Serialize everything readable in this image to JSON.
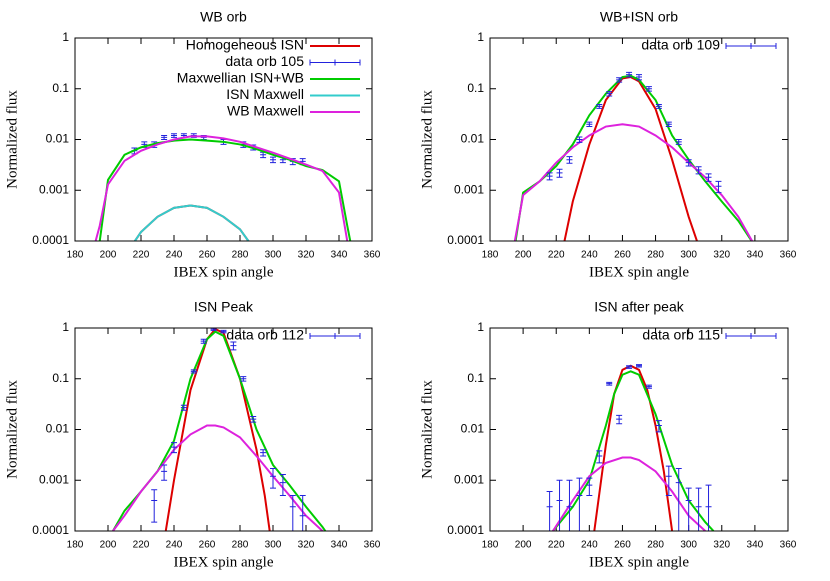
{
  "chart_data": [
    {
      "type": "line",
      "title": "WB orb",
      "x_label": "IBEX spin angle",
      "y_label": "Normalized flux",
      "xlim": [
        180,
        360
      ],
      "xticks": [
        180,
        200,
        220,
        240,
        260,
        280,
        300,
        320,
        340,
        360
      ],
      "ylim": [
        0.0001,
        1
      ],
      "yticks": [
        0.0001,
        0.001,
        0.01,
        0.1,
        1
      ],
      "yscale": "log",
      "legend": "top right",
      "series": [
        {
          "name": "Homogeneous ISN",
          "color": "#dd0000",
          "x": [
            210,
            220,
            230,
            240,
            250,
            260,
            270,
            280,
            290
          ],
          "values": [
            5e-05,
            0.00015,
            0.0003,
            0.00045,
            0.0005,
            0.00045,
            0.0003,
            0.00017,
            6e-05
          ]
        },
        {
          "name": "data orb 105",
          "color": "#2222dd",
          "x": [
            216,
            222,
            228,
            234,
            240,
            246,
            252,
            258,
            270,
            282,
            288,
            294,
            300,
            306,
            312,
            318
          ],
          "values": [
            0.006,
            0.008,
            0.008,
            0.011,
            0.012,
            0.012,
            0.012,
            0.011,
            0.009,
            0.008,
            0.007,
            0.005,
            0.004,
            0.004,
            0.0037,
            0.0037
          ],
          "errors": [
            0.0008,
            0.001,
            0.001,
            0.001,
            0.001,
            0.001,
            0.001,
            0.001,
            0.001,
            0.001,
            0.0008,
            0.0006,
            0.0005,
            0.0005,
            0.0005,
            0.0005
          ]
        },
        {
          "name": "Maxwellian ISN+WB",
          "color": "#00cc00",
          "x": [
            190,
            195,
            200,
            210,
            220,
            230,
            240,
            250,
            260,
            270,
            280,
            290,
            300,
            310,
            320,
            330,
            340,
            345,
            350
          ],
          "values": [
            5e-05,
            0.0001,
            0.0016,
            0.005,
            0.007,
            0.0085,
            0.0095,
            0.01,
            0.0095,
            0.009,
            0.008,
            0.0065,
            0.005,
            0.004,
            0.003,
            0.0025,
            0.0015,
            0.0002,
            3e-05
          ]
        },
        {
          "name": "ISN Maxwell",
          "color": "#33cccc",
          "x": [
            210,
            220,
            230,
            240,
            250,
            260,
            270,
            280,
            290
          ],
          "values": [
            5e-05,
            0.00015,
            0.0003,
            0.00045,
            0.0005,
            0.00045,
            0.0003,
            0.00017,
            6e-05
          ]
        },
        {
          "name": "WB Maxwell",
          "color": "#dd22dd",
          "x": [
            190,
            195,
            200,
            210,
            220,
            230,
            240,
            250,
            260,
            270,
            280,
            290,
            300,
            310,
            320,
            330,
            340,
            345,
            350
          ],
          "values": [
            5e-05,
            0.0002,
            0.0013,
            0.0038,
            0.006,
            0.008,
            0.01,
            0.0115,
            0.0115,
            0.0105,
            0.009,
            0.007,
            0.0055,
            0.0042,
            0.0032,
            0.0024,
            0.0009,
            0.0001,
            2e-05
          ]
        }
      ]
    },
    {
      "type": "line",
      "title": "WB+ISN orb",
      "x_label": "IBEX spin angle",
      "y_label": "Normalized flux",
      "xlim": [
        180,
        360
      ],
      "xticks": [
        180,
        200,
        220,
        240,
        260,
        280,
        300,
        320,
        340,
        360
      ],
      "ylim": [
        0.0001,
        1
      ],
      "yticks": [
        0.0001,
        0.001,
        0.01,
        0.1,
        1
      ],
      "yscale": "log",
      "legend": "top right",
      "series": [
        {
          "color": "#dd0000",
          "x": [
            225,
            230,
            240,
            250,
            260,
            265,
            270,
            280,
            290,
            300,
            305
          ],
          "values": [
            0.0001,
            0.0006,
            0.008,
            0.06,
            0.16,
            0.17,
            0.14,
            0.04,
            0.004,
            0.0003,
            0.0001
          ]
        },
        {
          "color": "#00cc00",
          "x": [
            195,
            200,
            210,
            220,
            230,
            240,
            250,
            260,
            265,
            270,
            280,
            290,
            300,
            310,
            320,
            330,
            340
          ],
          "values": [
            8e-05,
            0.0009,
            0.0015,
            0.003,
            0.008,
            0.03,
            0.08,
            0.17,
            0.18,
            0.15,
            0.06,
            0.012,
            0.004,
            0.0015,
            0.0006,
            0.00025,
            8e-05
          ]
        },
        {
          "color": "#dd22dd",
          "x": [
            195,
            200,
            210,
            220,
            230,
            240,
            250,
            260,
            270,
            280,
            290,
            300,
            310,
            320,
            330,
            340
          ],
          "values": [
            0.0001,
            0.0008,
            0.0015,
            0.0035,
            0.007,
            0.012,
            0.018,
            0.02,
            0.018,
            0.012,
            0.007,
            0.0035,
            0.0018,
            0.0008,
            0.0003,
            8e-05
          ]
        },
        {
          "name": "data orb 109",
          "color": "#2222dd",
          "x": [
            216,
            222,
            228,
            234,
            240,
            246,
            252,
            258,
            264,
            270,
            276,
            282,
            288,
            294,
            300,
            306,
            312,
            318
          ],
          "values": [
            0.0019,
            0.0022,
            0.004,
            0.01,
            0.02,
            0.045,
            0.08,
            0.15,
            0.19,
            0.17,
            0.1,
            0.045,
            0.02,
            0.009,
            0.0035,
            0.0025,
            0.0018,
            0.0012
          ],
          "errors": [
            0.0003,
            0.0004,
            0.0006,
            0.0012,
            0.002,
            0.004,
            0.008,
            0.015,
            0.02,
            0.02,
            0.01,
            0.004,
            0.002,
            0.001,
            0.0005,
            0.0004,
            0.0003,
            0.0003
          ]
        }
      ]
    },
    {
      "type": "line",
      "title": "ISN Peak",
      "x_label": "IBEX spin angle",
      "y_label": "Normalized flux",
      "xlim": [
        180,
        360
      ],
      "xticks": [
        180,
        200,
        220,
        240,
        260,
        280,
        300,
        320,
        340,
        360
      ],
      "ylim": [
        0.0001,
        1
      ],
      "yticks": [
        0.0001,
        0.001,
        0.01,
        0.1,
        1
      ],
      "yscale": "log",
      "legend": "top right",
      "series": [
        {
          "color": "#dd0000",
          "x": [
            235,
            240,
            250,
            260,
            265,
            270,
            280,
            290,
            295,
            298
          ],
          "values": [
            0.0001,
            0.001,
            0.06,
            0.6,
            0.95,
            0.8,
            0.1,
            0.004,
            0.0005,
            0.0001
          ]
        },
        {
          "color": "#00cc00",
          "x": [
            203,
            210,
            220,
            230,
            240,
            250,
            260,
            265,
            270,
            280,
            290,
            300,
            310,
            320,
            330,
            335
          ],
          "values": [
            0.0001,
            0.00025,
            0.0006,
            0.0015,
            0.006,
            0.1,
            0.6,
            0.85,
            0.7,
            0.1,
            0.01,
            0.002,
            0.0008,
            0.0003,
            0.00012,
            7e-05
          ]
        },
        {
          "color": "#dd22dd",
          "x": [
            203,
            210,
            220,
            230,
            240,
            250,
            260,
            265,
            270,
            280,
            290,
            300,
            310,
            320,
            330
          ],
          "values": [
            0.0001,
            0.0002,
            0.0006,
            0.0015,
            0.004,
            0.008,
            0.012,
            0.012,
            0.011,
            0.007,
            0.003,
            0.0012,
            0.0005,
            0.0002,
            0.0001
          ]
        },
        {
          "name": "data orb 112",
          "color": "#2222dd",
          "x": [
            228,
            234,
            240,
            246,
            252,
            258,
            264,
            270,
            276,
            282,
            288,
            294,
            300,
            306,
            312,
            318
          ],
          "values": [
            0.0004,
            0.0015,
            0.0045,
            0.027,
            0.14,
            0.55,
            0.95,
            0.85,
            0.45,
            0.1,
            0.016,
            0.0035,
            0.0012,
            0.0009,
            0.0003,
            0.0002
          ],
          "errors": [
            0.00025,
            0.0005,
            0.001,
            0.003,
            0.01,
            0.05,
            0.05,
            0.05,
            0.08,
            0.01,
            0.002,
            0.0005,
            0.0005,
            0.0004,
            0.0002,
            0.0003
          ]
        }
      ]
    },
    {
      "type": "line",
      "title": "ISN after peak",
      "x_label": "IBEX spin angle",
      "y_label": "Normalized flux",
      "xlim": [
        180,
        360
      ],
      "xticks": [
        180,
        200,
        220,
        240,
        260,
        280,
        300,
        320,
        340,
        360
      ],
      "ylim": [
        0.0001,
        1
      ],
      "yticks": [
        0.0001,
        0.001,
        0.01,
        0.1,
        1
      ],
      "yscale": "log",
      "legend": "top right",
      "series": [
        {
          "color": "#dd0000",
          "x": [
            243,
            250,
            255,
            260,
            265,
            270,
            275,
            280,
            285,
            290
          ],
          "values": [
            0.0001,
            0.005,
            0.05,
            0.15,
            0.18,
            0.15,
            0.06,
            0.012,
            0.0015,
            0.0001
          ]
        },
        {
          "color": "#00cc00",
          "x": [
            218,
            230,
            240,
            250,
            255,
            260,
            265,
            270,
            280,
            290,
            300,
            310,
            315
          ],
          "values": [
            0.0001,
            0.0003,
            0.001,
            0.012,
            0.05,
            0.12,
            0.14,
            0.12,
            0.02,
            0.002,
            0.0004,
            0.00015,
            0.0001
          ]
        },
        {
          "color": "#dd22dd",
          "x": [
            218,
            230,
            240,
            250,
            260,
            265,
            270,
            280,
            290,
            300,
            310
          ],
          "values": [
            0.0001,
            0.0004,
            0.0012,
            0.0022,
            0.0028,
            0.0028,
            0.0025,
            0.0015,
            0.0006,
            0.0002,
            0.0001
          ]
        },
        {
          "name": "data orb 115",
          "color": "#2222dd",
          "x": [
            216,
            222,
            228,
            234,
            240,
            246,
            252,
            258,
            264,
            270,
            276,
            282,
            288,
            294,
            300,
            306,
            312
          ],
          "values": [
            0.0003,
            0.0004,
            0.0003,
            0.0005,
            0.0008,
            0.003,
            0.08,
            0.016,
            0.17,
            0.18,
            0.07,
            0.012,
            0.0012,
            0.0009,
            0.0004,
            0.0003,
            0.0003
          ],
          "errors": [
            0.0003,
            0.0006,
            0.0007,
            0.0006,
            0.0003,
            0.0008,
            0.005,
            0.003,
            0.01,
            0.01,
            0.005,
            0.003,
            0.0007,
            0.0008,
            0.0003,
            0.0004,
            0.0005
          ]
        }
      ]
    }
  ]
}
